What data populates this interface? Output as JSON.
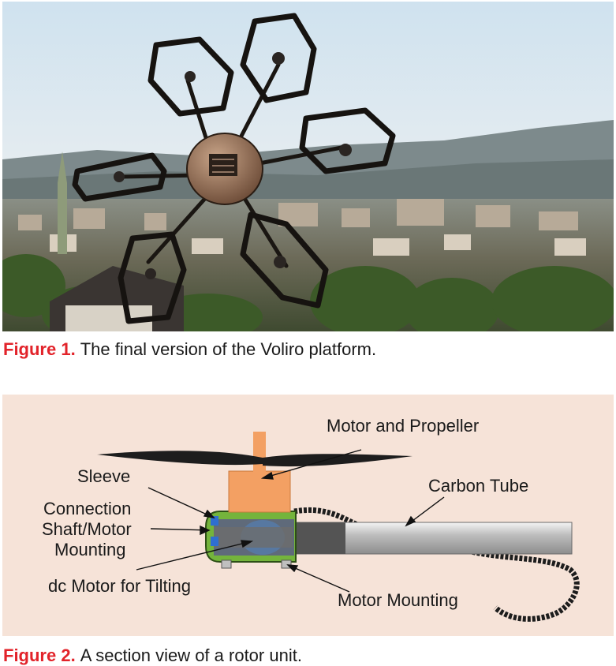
{
  "figure1": {
    "number": "Figure 1.",
    "caption": "The final version of the Voliro platform."
  },
  "figure2": {
    "number": "Figure 2.",
    "caption": "A section view of a rotor unit.",
    "labels": {
      "motor_propeller": "Motor and Propeller",
      "sleeve": "Sleeve",
      "carbon_tube": "Carbon Tube",
      "connection_1": "Connection",
      "connection_2": "Shaft/Motor",
      "connection_3": "Mounting",
      "dc_motor": "dc Motor for Tilting",
      "motor_mounting": "Motor Mounting"
    }
  },
  "colors": {
    "caption_label": "#e2232a",
    "diagram_bg": "#f6e3d8",
    "motor": "#f3a063",
    "mounting": "#74b43c"
  }
}
